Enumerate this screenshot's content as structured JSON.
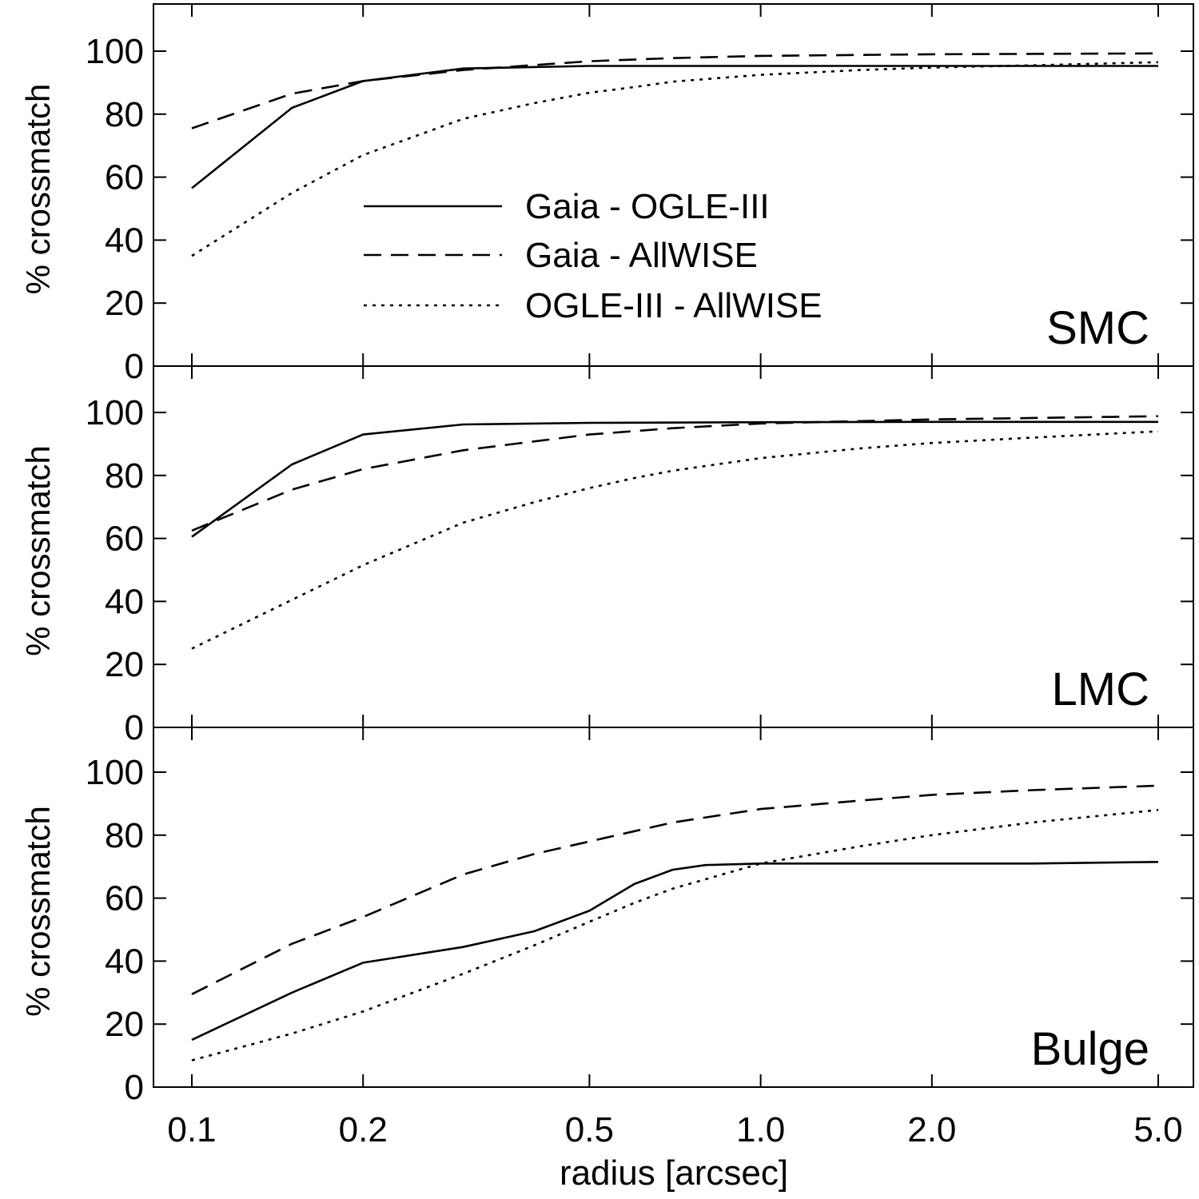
{
  "chart_data": {
    "type": "line",
    "xlabel": "radius [arcsec]",
    "ylabel": "% crossmatch",
    "x_scale": "log",
    "xlim": [
      0.08,
      6.0
    ],
    "ylim": [
      0,
      110
    ],
    "x_ticks": [
      0.1,
      0.2,
      0.5,
      1.0,
      2.0,
      5.0
    ],
    "x_tick_labels": [
      "0.1",
      "0.2",
      "0.5",
      "1.0",
      "2.0",
      "5.0"
    ],
    "y_ticks": [
      0,
      20,
      40,
      60,
      80,
      100
    ],
    "y_tick_labels": [
      "0",
      "20",
      "40",
      "60",
      "80",
      "100"
    ],
    "legend": {
      "placement": "inside top panel, center-left",
      "entries": [
        {
          "label": "Gaia - OGLE-III",
          "style": "solid"
        },
        {
          "label": "Gaia - AllWISE",
          "style": "dashed"
        },
        {
          "label": "OGLE-III - AllWISE",
          "style": "dotted"
        }
      ]
    },
    "panels": [
      {
        "label": "SMC",
        "series": [
          {
            "name": "Gaia - OGLE-III",
            "style": "solid",
            "x": [
              0.1,
              0.15,
              0.2,
              0.3,
              0.5,
              1.0,
              2.0,
              5.0
            ],
            "y": [
              56.5,
              82,
              90.5,
              94.5,
              95.3,
              95.3,
              95.3,
              95.3
            ]
          },
          {
            "name": "Gaia - AllWISE",
            "style": "dashed",
            "x": [
              0.1,
              0.15,
              0.2,
              0.3,
              0.5,
              0.7,
              1.0,
              2.0,
              5.0
            ],
            "y": [
              75.5,
              86.5,
              90.5,
              94,
              96.8,
              97.8,
              98.5,
              99,
              99.3
            ]
          },
          {
            "name": "OGLE-III - AllWISE",
            "style": "dotted",
            "x": [
              0.1,
              0.15,
              0.2,
              0.3,
              0.4,
              0.5,
              0.6,
              0.7,
              1.0,
              1.5,
              2.0,
              3.0,
              5.0
            ],
            "y": [
              35,
              55,
              67,
              78.5,
              83.5,
              86.8,
              88.6,
              90.3,
              92.5,
              94,
              94.8,
              95.5,
              96.5
            ]
          }
        ]
      },
      {
        "label": "LMC",
        "series": [
          {
            "name": "Gaia - OGLE-III",
            "style": "solid",
            "x": [
              0.1,
              0.15,
              0.2,
              0.3,
              0.5,
              1.0,
              2.0,
              5.0
            ],
            "y": [
              60.5,
              83.5,
              93,
              96.2,
              96.7,
              96.9,
              97,
              97
            ]
          },
          {
            "name": "Gaia - AllWISE",
            "style": "dashed",
            "x": [
              0.1,
              0.15,
              0.2,
              0.3,
              0.5,
              0.7,
              1.0,
              2.0,
              5.0
            ],
            "y": [
              62.5,
              75.5,
              82,
              88,
              93,
              95,
              96.5,
              97.8,
              98.8
            ]
          },
          {
            "name": "OGLE-III - AllWISE",
            "style": "dotted",
            "x": [
              0.1,
              0.15,
              0.2,
              0.3,
              0.4,
              0.5,
              0.6,
              0.7,
              1.0,
              1.5,
              2.0,
              3.0,
              5.0
            ],
            "y": [
              25,
              40.5,
              51.5,
              65,
              71.5,
              76,
              79.2,
              81.5,
              85.5,
              88.6,
              90.3,
              92,
              94
            ]
          }
        ]
      },
      {
        "label": "Bulge",
        "series": [
          {
            "name": "Gaia - OGLE-III",
            "style": "solid",
            "x": [
              0.1,
              0.15,
              0.2,
              0.3,
              0.4,
              0.5,
              0.6,
              0.7,
              0.8,
              1.0,
              2.0,
              3.0,
              5.0
            ],
            "y": [
              15,
              30,
              39.5,
              44.5,
              49.5,
              56,
              64.5,
              69,
              70.5,
              71,
              71,
              71,
              71.5
            ]
          },
          {
            "name": "Gaia - AllWISE",
            "style": "dashed",
            "x": [
              0.1,
              0.15,
              0.2,
              0.3,
              0.4,
              0.5,
              0.7,
              1.0,
              1.5,
              2.0,
              3.0,
              5.0
            ],
            "y": [
              29.5,
              45.5,
              54,
              67.5,
              74,
              78,
              84,
              88.3,
              91,
              92.8,
              94.3,
              95.7
            ]
          },
          {
            "name": "OGLE-III - AllWISE",
            "style": "dotted",
            "x": [
              0.1,
              0.15,
              0.2,
              0.3,
              0.4,
              0.5,
              0.6,
              0.7,
              0.8,
              1.0,
              1.5,
              2.0,
              3.0,
              5.0
            ],
            "y": [
              8.5,
              17,
              24,
              36,
              45,
              52.5,
              58.5,
              63,
              66,
              71,
              76.5,
              80,
              84,
              88
            ]
          }
        ]
      }
    ]
  }
}
